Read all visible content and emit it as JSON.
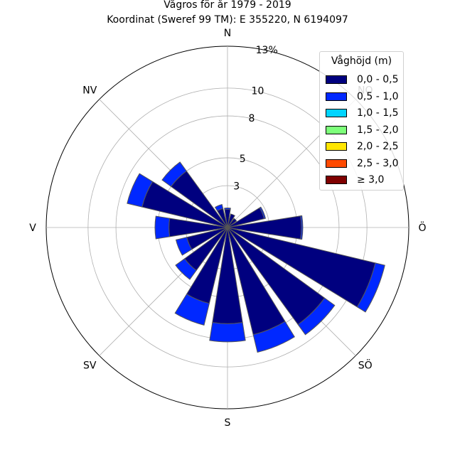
{
  "title_line1": "Vågros för år 1979 - 2019",
  "title_line2": "Koordinat (Sweref 99 TM): E 355220, N 6194097",
  "chart_data": {
    "type": "polar-bar",
    "directions": [
      "N",
      "NNÖ",
      "NÖ",
      "ÖNÖ",
      "Ö",
      "ÖSÖ",
      "SÖ",
      "SSÖ",
      "S",
      "SSV",
      "SV",
      "VSV",
      "V",
      "VNV",
      "NV",
      "NNV"
    ],
    "compass_labels": [
      {
        "label": "N",
        "deg": 0
      },
      {
        "label": "NO",
        "deg": 45
      },
      {
        "label": "Ö",
        "deg": 90
      },
      {
        "label": "SÖ",
        "deg": 135
      },
      {
        "label": "S",
        "deg": 180
      },
      {
        "label": "SV",
        "deg": 225
      },
      {
        "label": "V",
        "deg": 270
      },
      {
        "label": "NV",
        "deg": 315
      }
    ],
    "radial_ticks": [
      3,
      5,
      8,
      10,
      13
    ],
    "radial_tick_labels": [
      "3",
      "5",
      "8",
      "10",
      "13%"
    ],
    "radial_max": 13,
    "legend_title": "Våghöjd (m)",
    "series": [
      {
        "name": "0,0 - 0,5",
        "color": "#00007f",
        "values": [
          1.3,
          1.0,
          0.8,
          2.7,
          5.3,
          10.9,
          8.6,
          7.9,
          6.9,
          5.6,
          3.8,
          3.0,
          4.2,
          6.3,
          5.0,
          1.4
        ]
      },
      {
        "name": "0,5 - 1,0",
        "color": "#0028ff",
        "values": [
          0.1,
          0.0,
          0.0,
          0.1,
          0.1,
          0.7,
          0.9,
          1.3,
          1.3,
          1.6,
          0.8,
          0.8,
          1.0,
          1.1,
          0.8,
          0.3
        ]
      },
      {
        "name": "1,0 - 1,5",
        "color": "#00d4ff",
        "values": [
          0,
          0,
          0,
          0,
          0,
          0,
          0,
          0,
          0,
          0,
          0,
          0,
          0,
          0,
          0,
          0
        ]
      },
      {
        "name": "1,5 - 2,0",
        "color": "#7dff7a",
        "values": [
          0,
          0,
          0,
          0,
          0,
          0,
          0,
          0,
          0,
          0,
          0,
          0,
          0,
          0,
          0,
          0
        ]
      },
      {
        "name": "2,0 - 2,5",
        "color": "#ffe600",
        "values": [
          0,
          0,
          0,
          0,
          0,
          0,
          0,
          0,
          0,
          0,
          0,
          0,
          0,
          0,
          0,
          0
        ]
      },
      {
        "name": "2,5 - 3,0",
        "color": "#ff4a00",
        "values": [
          0,
          0,
          0,
          0,
          0,
          0,
          0,
          0,
          0,
          0,
          0,
          0,
          0,
          0,
          0,
          0
        ]
      },
      {
        "name": "≥ 3,0",
        "color": "#7f0000",
        "values": [
          0,
          0,
          0,
          0,
          0,
          0,
          0,
          0,
          0,
          0,
          0,
          0,
          0,
          0,
          0,
          0
        ]
      }
    ]
  }
}
